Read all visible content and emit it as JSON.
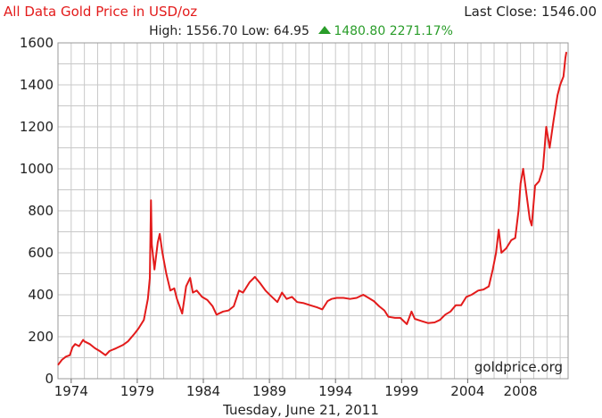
{
  "header": {
    "title": "All Data Gold Price in USD/oz",
    "last_close": "Last Close: 1546.00",
    "high": "High: 1556.70",
    "low": "Low: 64.95",
    "change_abs": "1480.80",
    "change_pct": "2271.17%"
  },
  "watermark": "goldprice.org",
  "date_label": "Tuesday, June 21, 2011",
  "colors": {
    "line": "#e31b1b",
    "title": "#e31b1b",
    "up": "#2a9d2a",
    "grid": "#c8c8c8"
  },
  "chart_data": {
    "type": "line",
    "title": "All Data Gold Price in USD/oz",
    "xlabel": "",
    "ylabel": "",
    "xlim": [
      1973.0,
      2011.6
    ],
    "ylim": [
      0,
      1600
    ],
    "yticks": [
      0,
      200,
      400,
      600,
      800,
      1000,
      1200,
      1400,
      1600
    ],
    "xticks": [
      {
        "value": 1974,
        "label": "1974"
      },
      {
        "value": 1979,
        "label": "1979"
      },
      {
        "value": 1984,
        "label": "1984"
      },
      {
        "value": 1989,
        "label": "1989"
      },
      {
        "value": 1994,
        "label": "1994"
      },
      {
        "value": 1999,
        "label": "1999"
      },
      {
        "value": 2004,
        "label": "2004"
      },
      {
        "value": 2008,
        "label": "2008"
      }
    ],
    "grid": true,
    "series": [
      {
        "points": [
          [
            1973.0,
            65
          ],
          [
            1973.3,
            90
          ],
          [
            1973.6,
            105
          ],
          [
            1973.9,
            112
          ],
          [
            1974.1,
            150
          ],
          [
            1974.3,
            165
          ],
          [
            1974.6,
            155
          ],
          [
            1974.9,
            185
          ],
          [
            1975.0,
            178
          ],
          [
            1975.4,
            165
          ],
          [
            1975.8,
            145
          ],
          [
            1976.2,
            130
          ],
          [
            1976.6,
            112
          ],
          [
            1976.9,
            132
          ],
          [
            1977.4,
            145
          ],
          [
            1977.9,
            160
          ],
          [
            1978.3,
            178
          ],
          [
            1978.8,
            215
          ],
          [
            1979.1,
            240
          ],
          [
            1979.5,
            280
          ],
          [
            1979.8,
            380
          ],
          [
            1979.95,
            480
          ],
          [
            1980.04,
            850
          ],
          [
            1980.1,
            640
          ],
          [
            1980.3,
            520
          ],
          [
            1980.55,
            650
          ],
          [
            1980.7,
            690
          ],
          [
            1980.9,
            600
          ],
          [
            1981.2,
            500
          ],
          [
            1981.5,
            420
          ],
          [
            1981.8,
            430
          ],
          [
            1982.0,
            380
          ],
          [
            1982.4,
            310
          ],
          [
            1982.7,
            440
          ],
          [
            1983.0,
            480
          ],
          [
            1983.2,
            410
          ],
          [
            1983.5,
            420
          ],
          [
            1983.9,
            390
          ],
          [
            1984.3,
            375
          ],
          [
            1984.7,
            345
          ],
          [
            1985.0,
            305
          ],
          [
            1985.5,
            320
          ],
          [
            1985.9,
            325
          ],
          [
            1986.3,
            345
          ],
          [
            1986.7,
            420
          ],
          [
            1987.0,
            410
          ],
          [
            1987.5,
            460
          ],
          [
            1987.9,
            485
          ],
          [
            1988.3,
            455
          ],
          [
            1988.7,
            420
          ],
          [
            1989.1,
            395
          ],
          [
            1989.6,
            365
          ],
          [
            1989.95,
            410
          ],
          [
            1990.3,
            380
          ],
          [
            1990.7,
            390
          ],
          [
            1991.1,
            365
          ],
          [
            1991.6,
            360
          ],
          [
            1992.1,
            350
          ],
          [
            1992.6,
            340
          ],
          [
            1993.0,
            330
          ],
          [
            1993.4,
            370
          ],
          [
            1993.7,
            380
          ],
          [
            1994.1,
            385
          ],
          [
            1994.6,
            385
          ],
          [
            1995.1,
            380
          ],
          [
            1995.6,
            385
          ],
          [
            1996.1,
            400
          ],
          [
            1996.5,
            385
          ],
          [
            1996.9,
            370
          ],
          [
            1997.3,
            345
          ],
          [
            1997.7,
            325
          ],
          [
            1998.0,
            295
          ],
          [
            1998.5,
            290
          ],
          [
            1998.9,
            290
          ],
          [
            1999.4,
            260
          ],
          [
            1999.75,
            320
          ],
          [
            2000.0,
            285
          ],
          [
            2000.5,
            275
          ],
          [
            2001.0,
            265
          ],
          [
            2001.5,
            268
          ],
          [
            2001.9,
            280
          ],
          [
            2002.3,
            305
          ],
          [
            2002.7,
            320
          ],
          [
            2003.1,
            350
          ],
          [
            2003.5,
            350
          ],
          [
            2003.9,
            390
          ],
          [
            2004.3,
            400
          ],
          [
            2004.8,
            420
          ],
          [
            2005.2,
            425
          ],
          [
            2005.6,
            440
          ],
          [
            2005.9,
            520
          ],
          [
            2006.15,
            600
          ],
          [
            2006.35,
            710
          ],
          [
            2006.55,
            600
          ],
          [
            2006.9,
            620
          ],
          [
            2007.3,
            660
          ],
          [
            2007.6,
            670
          ],
          [
            2007.85,
            800
          ],
          [
            2008.0,
            930
          ],
          [
            2008.2,
            1000
          ],
          [
            2008.45,
            880
          ],
          [
            2008.7,
            760
          ],
          [
            2008.85,
            730
          ],
          [
            2009.1,
            920
          ],
          [
            2009.4,
            940
          ],
          [
            2009.7,
            1000
          ],
          [
            2009.95,
            1200
          ],
          [
            2010.2,
            1100
          ],
          [
            2010.5,
            1230
          ],
          [
            2010.8,
            1350
          ],
          [
            2011.0,
            1400
          ],
          [
            2011.25,
            1440
          ],
          [
            2011.4,
            1530
          ],
          [
            2011.47,
            1556.7
          ]
        ]
      }
    ]
  }
}
